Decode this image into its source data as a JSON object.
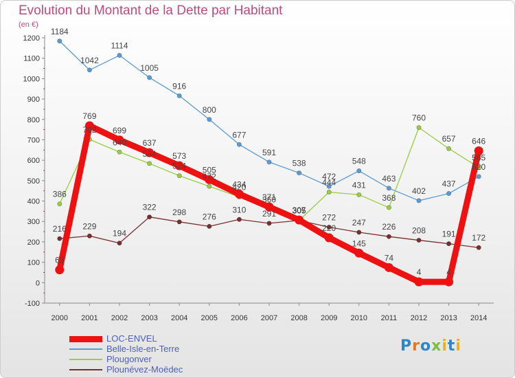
{
  "header": {
    "title": "Evolution du Montant de la Dette par Habitant",
    "unit": "(en €)"
  },
  "logo": {
    "text": "Proxiti"
  },
  "chart_data": {
    "type": "line",
    "title": "Evolution du Montant de la Dette par Habitant",
    "ylabel": "(en €)",
    "xlabel": "",
    "x": [
      "2000",
      "2001",
      "2002",
      "2003",
      "2004",
      "2005",
      "2006",
      "2007",
      "2008",
      "2009",
      "2010",
      "2011",
      "2012",
      "2013",
      "2014"
    ],
    "ylim": [
      -100,
      1200
    ],
    "yticks": [
      -100,
      0,
      100,
      200,
      300,
      400,
      500,
      600,
      700,
      800,
      900,
      1000,
      1100,
      1200
    ],
    "grid": false,
    "legend": "bottom-left",
    "series": [
      {
        "name": "LOC-ENVEL",
        "color": "#ee1111",
        "values": [
          63,
          769,
          699,
          637,
          573,
          505,
          434,
          371,
          307,
          220,
          145,
          74,
          4,
          4,
          646
        ]
      },
      {
        "name": "Belle-Isle-en-Terre",
        "color": "#5b9bd5",
        "values": [
          1184,
          1042,
          1114,
          1005,
          916,
          800,
          677,
          591,
          538,
          472,
          548,
          463,
          402,
          437,
          520
        ]
      },
      {
        "name": "Plougonver",
        "color": "#99cc44",
        "values": [
          386,
          702,
          640,
          584,
          524,
          472,
          420,
          360,
          305,
          444,
          431,
          368,
          760,
          657,
          565
        ]
      },
      {
        "name": "Plounévez-Moëdec",
        "color": "#7a2f2f",
        "values": [
          216,
          229,
          194,
          322,
          298,
          276,
          310,
          291,
          305,
          272,
          247,
          226,
          208,
          191,
          172
        ]
      }
    ]
  }
}
